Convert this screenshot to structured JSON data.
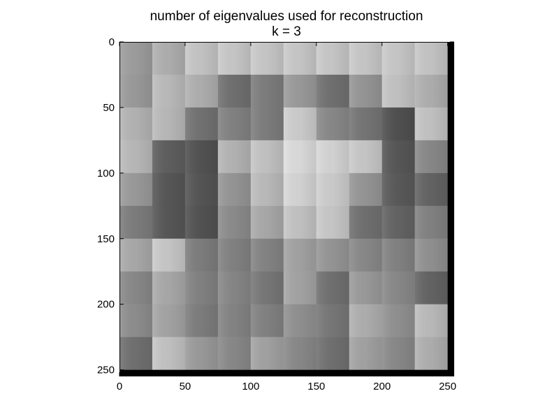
{
  "chart_data": {
    "type": "heatmap",
    "title": "number of eigenvalues used for reconstruction",
    "subtitle": "k = 3",
    "xlabel": "",
    "ylabel": "",
    "xlim": [
      0,
      255
    ],
    "ylim": [
      255,
      0
    ],
    "x_ticks": [
      "0",
      "50",
      "100",
      "150",
      "200",
      "250"
    ],
    "y_ticks": [
      "0",
      "50",
      "100",
      "150",
      "200",
      "250"
    ],
    "block_size": 25,
    "image_width": 250,
    "grid": false,
    "colormap": "grayscale",
    "intensity_range": [
      0,
      1
    ],
    "blocks": [
      [
        0.63,
        0.7,
        0.79,
        0.8,
        0.8,
        0.8,
        0.8,
        0.8,
        0.8,
        0.79
      ],
      [
        0.62,
        0.75,
        0.7,
        0.45,
        0.5,
        0.62,
        0.45,
        0.6,
        0.78,
        0.7
      ],
      [
        0.72,
        0.74,
        0.46,
        0.52,
        0.5,
        0.82,
        0.55,
        0.47,
        0.32,
        0.78
      ],
      [
        0.74,
        0.38,
        0.33,
        0.72,
        0.78,
        0.88,
        0.85,
        0.8,
        0.35,
        0.55
      ],
      [
        0.62,
        0.35,
        0.34,
        0.6,
        0.75,
        0.85,
        0.82,
        0.6,
        0.36,
        0.4
      ],
      [
        0.5,
        0.35,
        0.33,
        0.56,
        0.68,
        0.78,
        0.8,
        0.45,
        0.4,
        0.52
      ],
      [
        0.68,
        0.8,
        0.5,
        0.52,
        0.53,
        0.65,
        0.6,
        0.55,
        0.52,
        0.58
      ],
      [
        0.55,
        0.68,
        0.52,
        0.54,
        0.48,
        0.66,
        0.45,
        0.62,
        0.55,
        0.4
      ],
      [
        0.57,
        0.66,
        0.5,
        0.53,
        0.52,
        0.58,
        0.48,
        0.7,
        0.58,
        0.75
      ],
      [
        0.45,
        0.78,
        0.62,
        0.55,
        0.65,
        0.55,
        0.45,
        0.65,
        0.55,
        0.7
      ]
    ]
  }
}
